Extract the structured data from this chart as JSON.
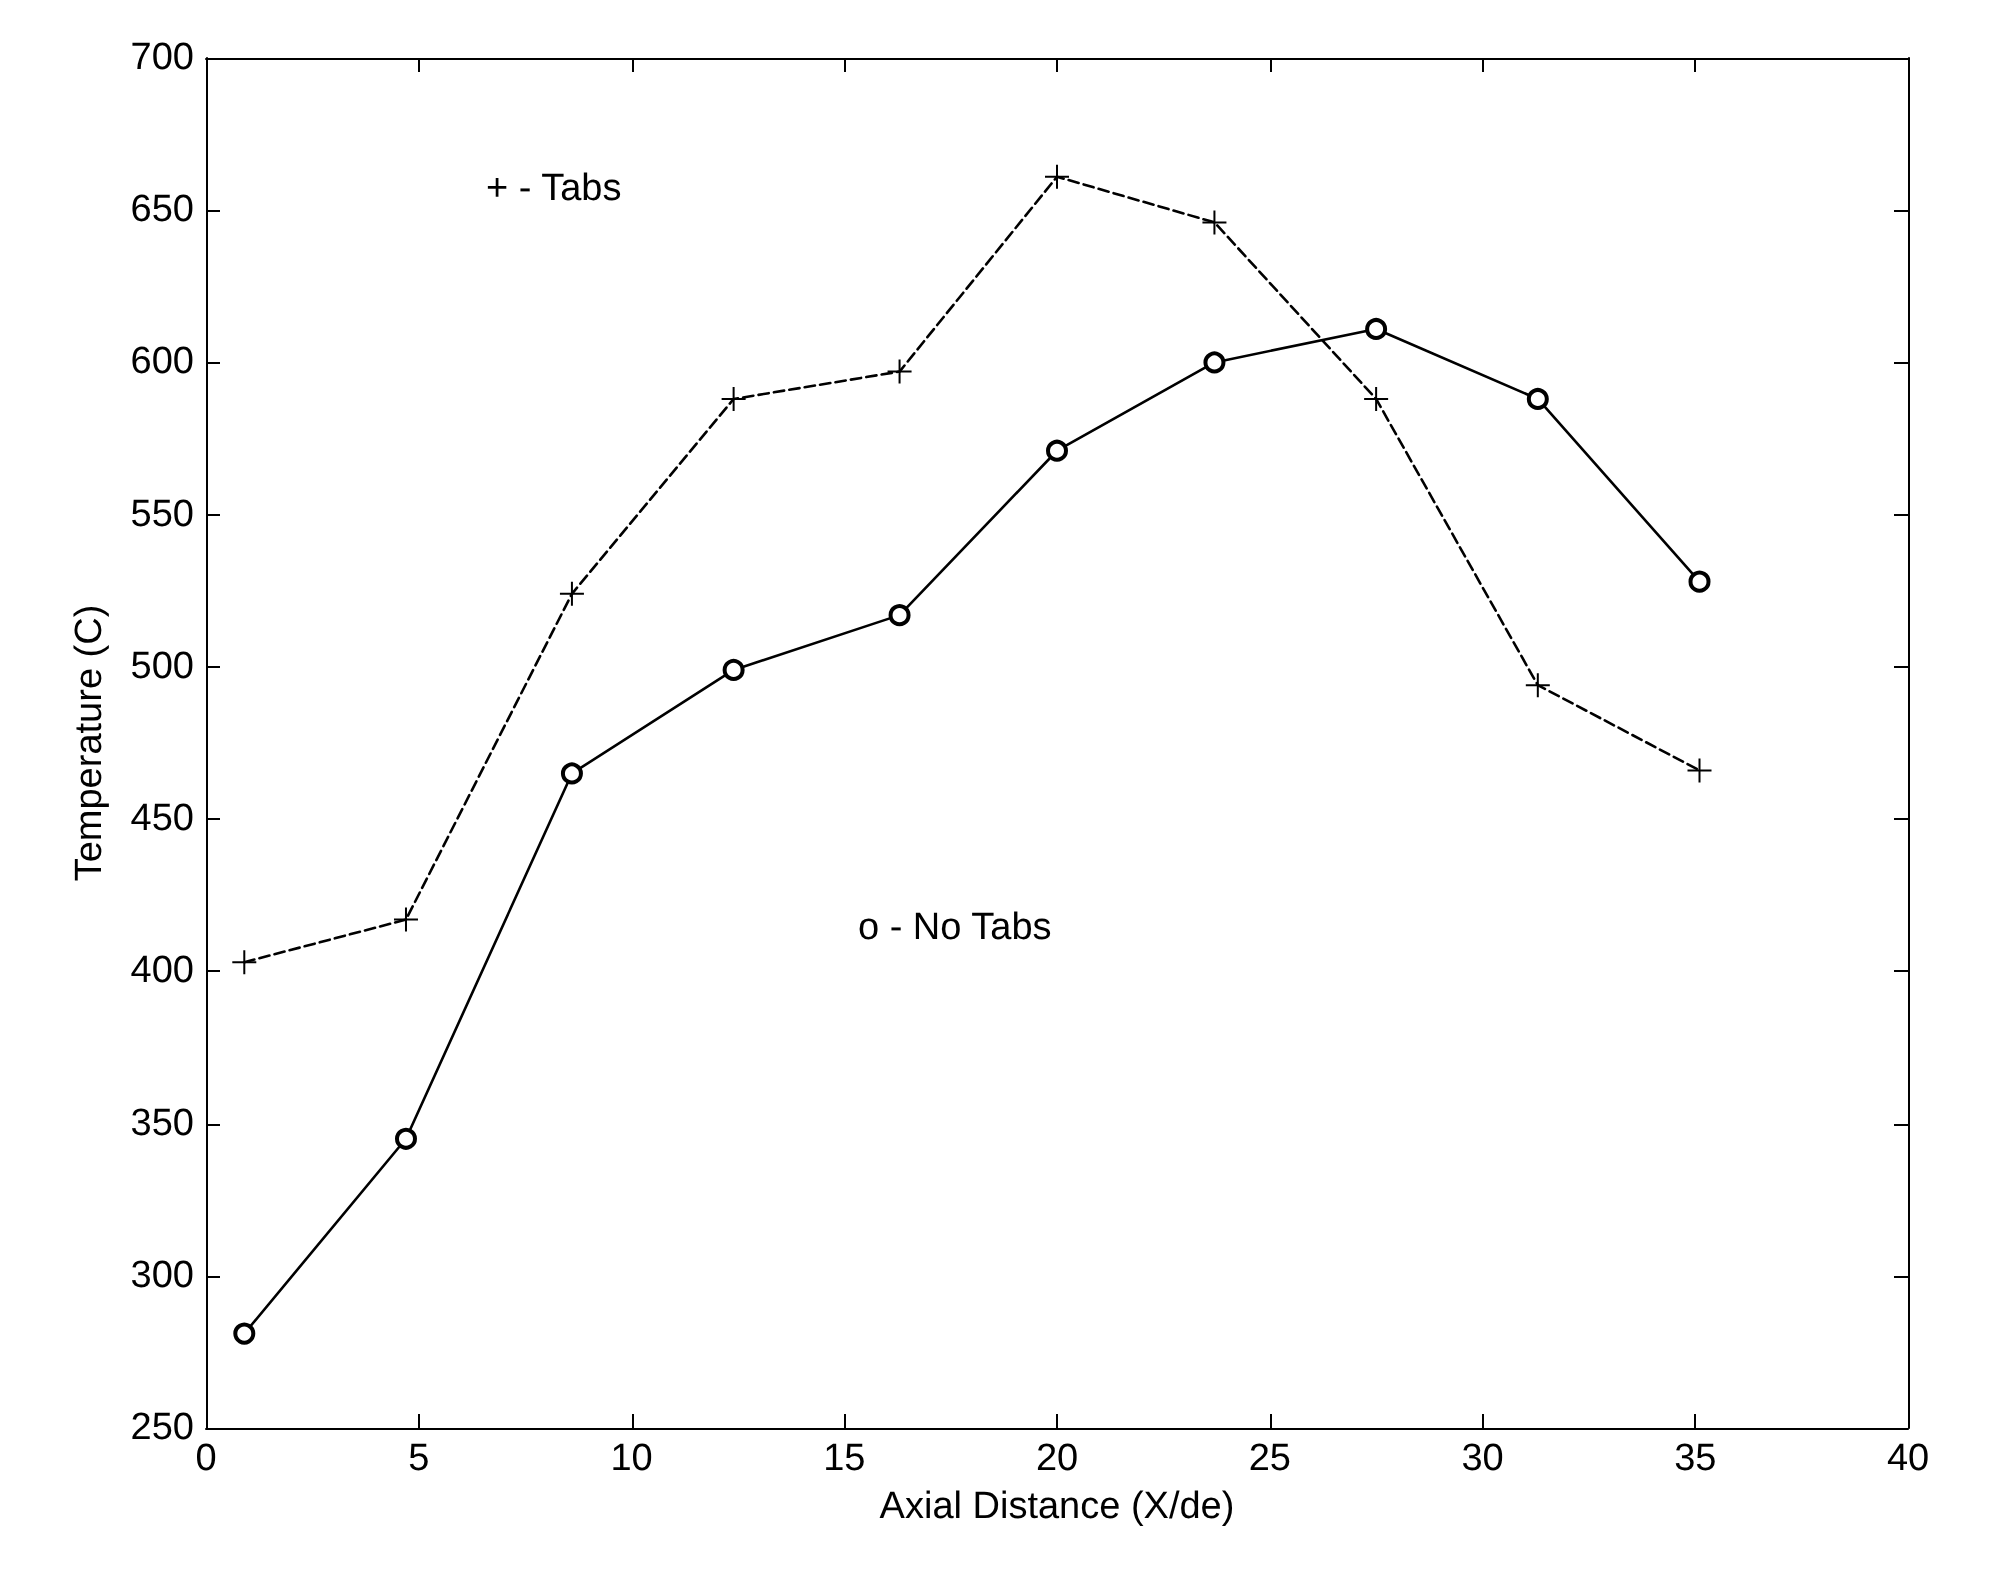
{
  "chart_data": {
    "type": "line",
    "xlabel": "Axial Distance (X/de)",
    "ylabel": "Temperature (C)",
    "annotations": [
      "+ - Tabs",
      "o - No Tabs"
    ],
    "x": [
      0.9,
      4.7,
      8.6,
      12.4,
      16.3,
      20.0,
      23.7,
      27.5,
      31.3,
      35.1
    ],
    "series": [
      {
        "color": "#000000",
        "marker": "cross",
        "line_style": "dashed",
        "values": [
          403,
          417,
          524,
          588,
          597,
          661,
          646,
          588,
          494,
          466
        ]
      },
      {
        "color": "#000000",
        "marker": "circle",
        "line_style": "solid",
        "values": [
          281,
          345,
          465,
          499,
          517,
          571,
          600,
          611,
          588,
          528
        ]
      }
    ],
    "xlim": [
      0,
      40
    ],
    "xticks": [
      0,
      5,
      10,
      15,
      20,
      25,
      30,
      35,
      40
    ],
    "ylim": [
      250,
      700
    ],
    "yticks": [
      250,
      300,
      350,
      400,
      450,
      500,
      550,
      600,
      650,
      700
    ],
    "grid": false
  }
}
